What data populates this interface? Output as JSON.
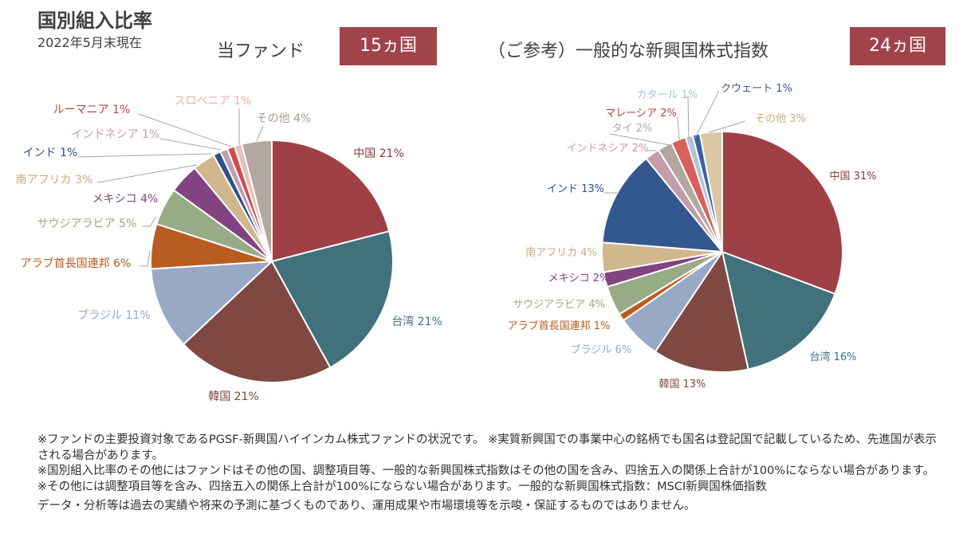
{
  "header": {
    "title": "国別組入比率",
    "date": "2022年5月末現在"
  },
  "chart_data": [
    {
      "type": "pie",
      "title": "当ファンド",
      "badge": "15ヵ国",
      "start": "top",
      "direction": "clockwise",
      "slices": [
        {
          "label": "中国",
          "value": 21,
          "text": "中国 21%",
          "color": "#9e4046",
          "text_color": "#8b3a40"
        },
        {
          "label": "台湾",
          "value": 21,
          "text": "台湾 21%",
          "color": "#41717b",
          "text_color": "#41717b"
        },
        {
          "label": "韓国",
          "value": 21,
          "text": "韓国 21%",
          "color": "#7f4842",
          "text_color": "#7f4842"
        },
        {
          "label": "ブラジル",
          "value": 11,
          "text": "ブラジル 11%",
          "color": "#97a9c4",
          "text_color": "#97a9c4"
        },
        {
          "label": "アラブ首長国連邦",
          "value": 6,
          "text": "アラブ首長国連邦 6%",
          "color": "#b85c22",
          "text_color": "#b85c22"
        },
        {
          "label": "サウジアラビア",
          "value": 5,
          "text": "サウジアラビア 5%",
          "color": "#97ab86",
          "text_color": "#97ab86"
        },
        {
          "label": "メキシコ",
          "value": 4,
          "text": "メキシコ 4%",
          "color": "#834381",
          "text_color": "#834381"
        },
        {
          "label": "南アフリカ",
          "value": 3,
          "text": "南アフリカ 3%",
          "color": "#d1b78e",
          "text_color": "#c9ab80"
        },
        {
          "label": "インド",
          "value": 1,
          "text": "インド 1%",
          "color": "#2f5189",
          "text_color": "#2f5189"
        },
        {
          "label": "インドネシア",
          "value": 1,
          "text": "インドネシア 1%",
          "color": "#c49dab",
          "text_color": "#c49dab"
        },
        {
          "label": "ルーマニア",
          "value": 1,
          "text": "ルーマニア 1%",
          "color": "#d24c4c",
          "text_color": "#b94545"
        },
        {
          "label": "スロベニア",
          "value": 1,
          "text": "スロベニア 1%",
          "color": "#e6c2bd",
          "text_color": "#e0b6b0"
        },
        {
          "label": "その他",
          "value": 4,
          "text": "その他 4%",
          "color": "#b3a89f",
          "text_color": "#a89d94"
        }
      ]
    },
    {
      "type": "pie",
      "title": "（ご参考）一般的な新興国株式指数",
      "badge": "24ヵ国",
      "start": "top",
      "direction": "clockwise",
      "slices": [
        {
          "label": "中国",
          "value": 31,
          "text": "中国 31%",
          "color": "#9e4046",
          "text_color": "#8b3a40"
        },
        {
          "label": "台湾",
          "value": 16,
          "text": "台湾 16%",
          "color": "#41717b",
          "text_color": "#41717b"
        },
        {
          "label": "韓国",
          "value": 13,
          "text": "韓国 13%",
          "color": "#7f4842",
          "text_color": "#7f4842"
        },
        {
          "label": "ブラジル",
          "value": 6,
          "text": "ブラジル 6%",
          "color": "#97a9c4",
          "text_color": "#97a9c4"
        },
        {
          "label": "アラブ首長国連邦",
          "value": 1,
          "text": "アラブ首長国連邦 1%",
          "color": "#b85c22",
          "text_color": "#b85c22"
        },
        {
          "label": "サウジアラビア",
          "value": 4,
          "text": "サウジアラビア 4%",
          "color": "#97ab86",
          "text_color": "#97ab86"
        },
        {
          "label": "メキシコ",
          "value": 2,
          "text": "メキシコ 2%",
          "color": "#834381",
          "text_color": "#834381"
        },
        {
          "label": "南アフリカ",
          "value": 4,
          "text": "南アフリカ 4%",
          "color": "#d1b78e",
          "text_color": "#c9ab80"
        },
        {
          "label": "インド",
          "value": 13,
          "text": "インド 13%",
          "color": "#33588f",
          "text_color": "#2f5189"
        },
        {
          "label": "インドネシア",
          "value": 2,
          "text": "インドネシア 2%",
          "color": "#c49dab",
          "text_color": "#c49dab"
        },
        {
          "label": "タイ",
          "value": 2,
          "text": "タイ 2%",
          "color": "#b3a89f",
          "text_color": "#b3a89f"
        },
        {
          "label": "マレーシア",
          "value": 2,
          "text": "マレーシア 2%",
          "color": "#d9605c",
          "text_color": "#b94545"
        },
        {
          "label": "カタール",
          "value": 1,
          "text": "カタール 1%",
          "color": "#b2c4d7",
          "text_color": "#a9c2c9"
        },
        {
          "label": "クウェート",
          "value": 1,
          "text": "クウェート 1%",
          "color": "#3a62a2",
          "text_color": "#3a5a8a"
        },
        {
          "label": "その他",
          "value": 3,
          "text": "その他 3%",
          "color": "#d9c8a3",
          "text_color": "#c9ab80"
        }
      ]
    }
  ],
  "notes": {
    "line1": "※ファンドの主要投資対象であるPGSF-新興国ハイインカム株式ファンドの状況です。 ※実質新興国での事業中心の銘柄でも国名は登記国で記載しているため、先進国が表示される場合があります。",
    "line2": "※国別組入比率のその他にはファンドはその他の国、調整項目等、一般的な新興国株式指数はその他の国を含み、四捨五入の関係上合計が100%にならない場合があります。※その他には調整項目等を含み、四捨五入の関係上合計が100%にならない場合があります。一般的な新興国株式指数：MSCI新興国株価指数",
    "disclaimer": "データ・分析等は過去の実績や将来の予測に基づくものであり、運用成果や市場環境等を示唆・保証するものではありません。"
  }
}
